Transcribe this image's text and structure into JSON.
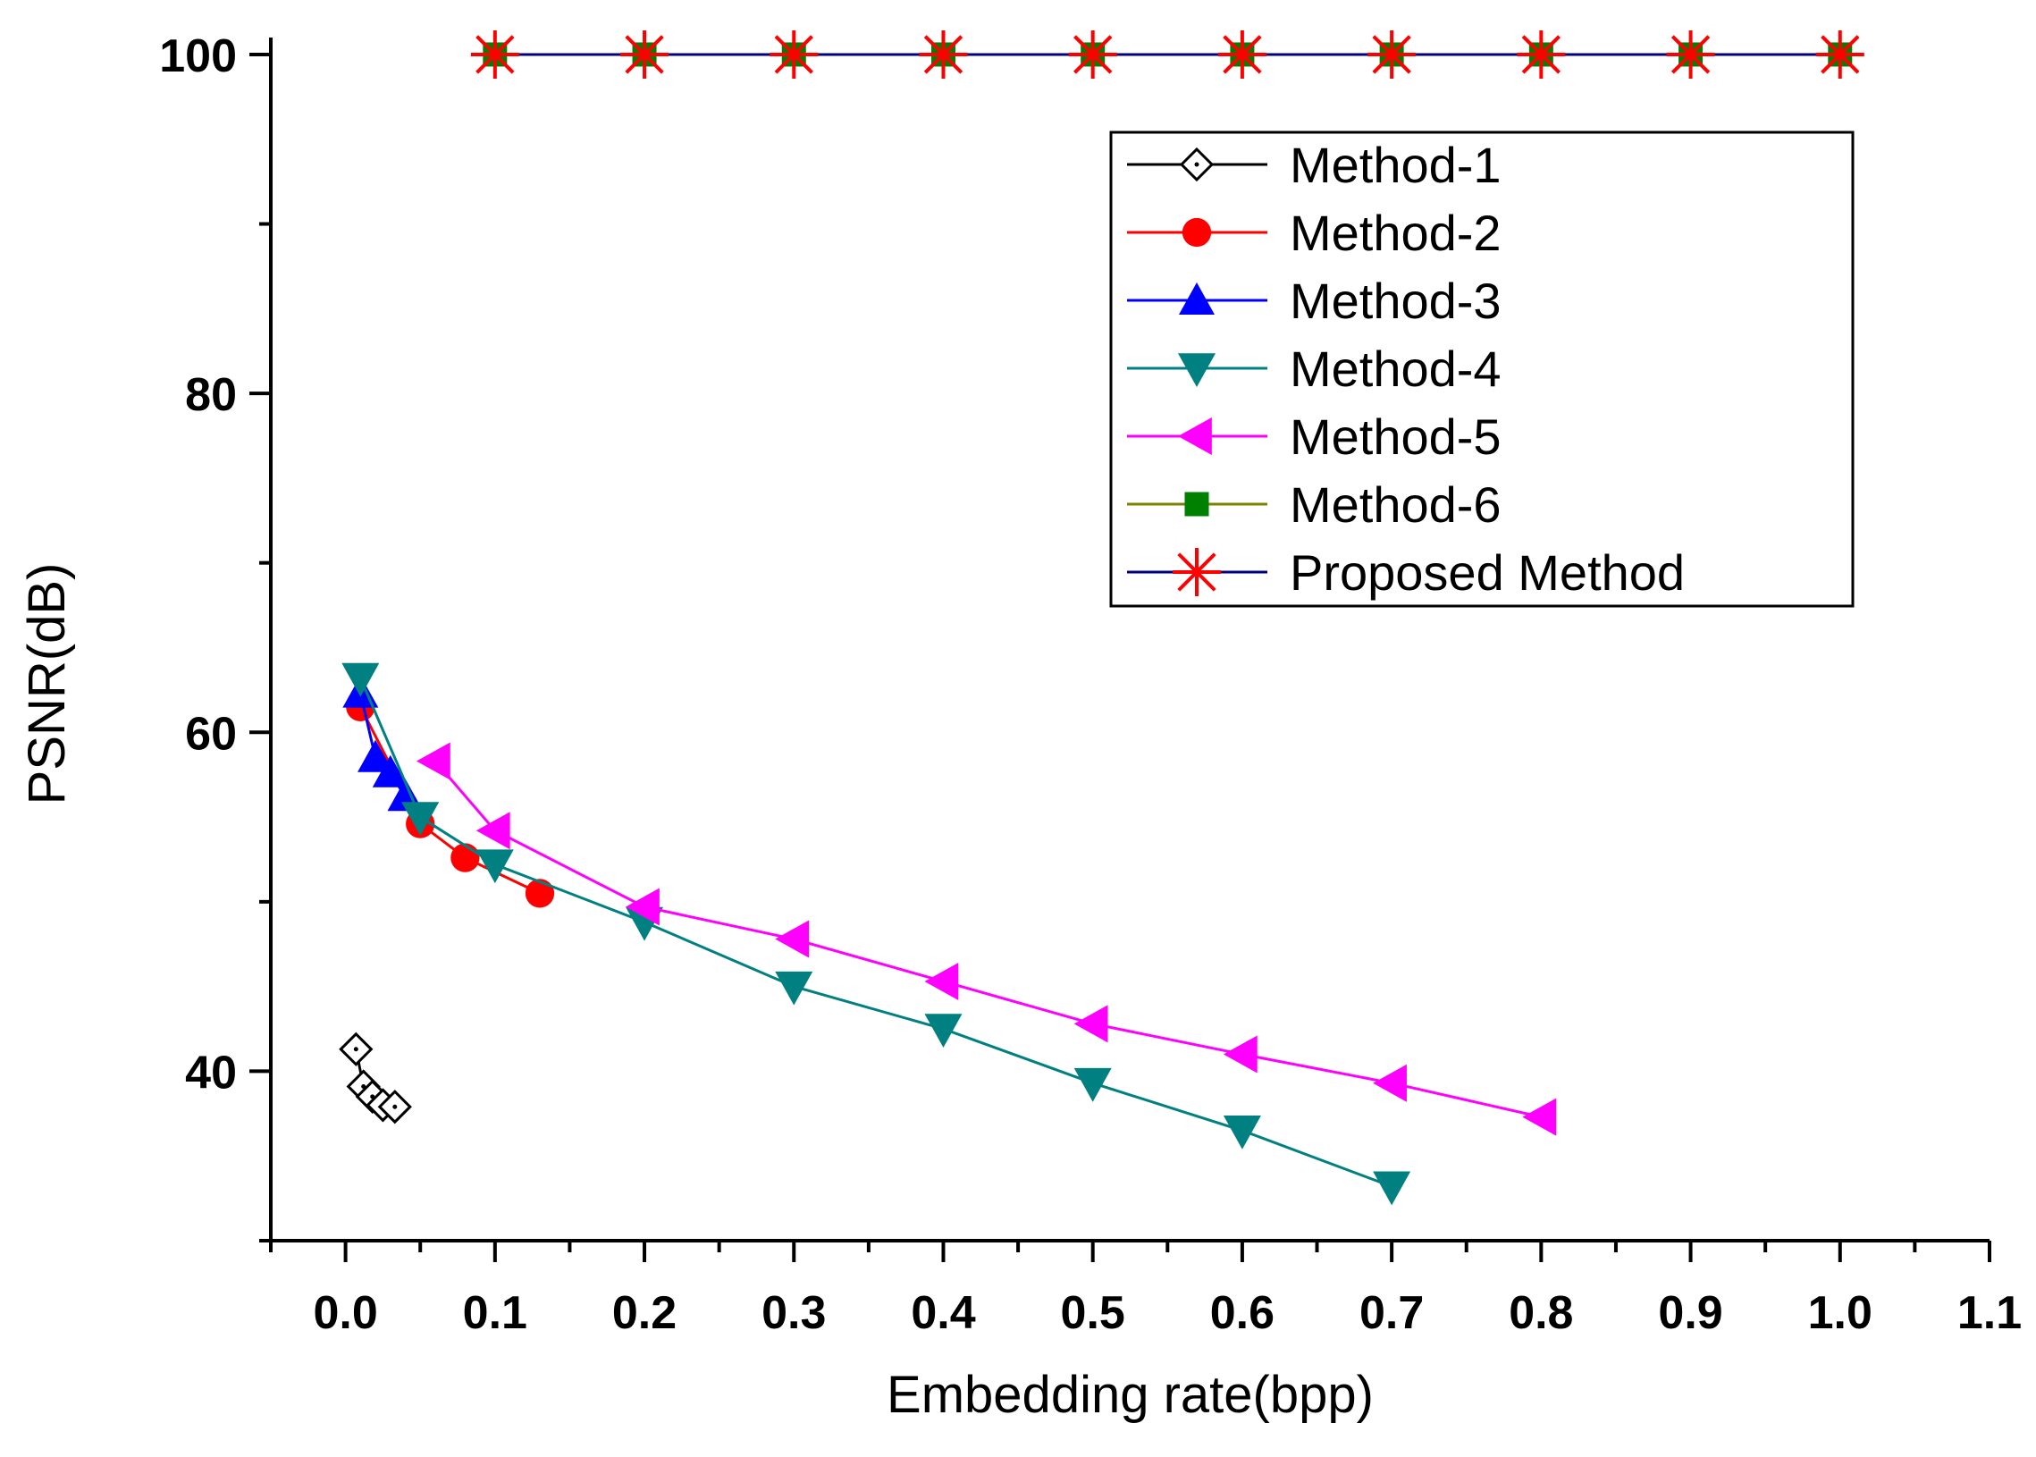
{
  "chart_data": {
    "type": "line",
    "title": "",
    "xlabel": "Embedding rate(bpp)",
    "ylabel": "PSNR(dB)",
    "xlim": [
      -0.05,
      1.1
    ],
    "ylim": [
      30,
      101
    ],
    "x_ticks": [
      0.0,
      0.1,
      0.2,
      0.3,
      0.4,
      0.5,
      0.6,
      0.7,
      0.8,
      0.9,
      1.0,
      1.1
    ],
    "x_tick_labels": [
      "0.0",
      "0.1",
      "0.2",
      "0.3",
      "0.4",
      "0.5",
      "0.6",
      "0.7",
      "0.8",
      "0.9",
      "1.0",
      "1.1"
    ],
    "y_ticks": [
      40,
      60,
      80,
      100
    ],
    "y_tick_labels": [
      "40",
      "60",
      "80",
      "100"
    ],
    "legend_position": "top-right",
    "series": [
      {
        "name": "Method-1",
        "marker": "diamond-open",
        "color": "#000000",
        "marker_color": "#000000",
        "x": [
          0.007,
          0.012,
          0.018,
          0.025,
          0.033
        ],
        "y": [
          41.3,
          39.1,
          38.5,
          38.0,
          37.9
        ]
      },
      {
        "name": "Method-2",
        "marker": "circle",
        "color": "#ff0000",
        "marker_color": "#ff0000",
        "x": [
          0.01,
          0.05,
          0.08,
          0.13
        ],
        "y": [
          61.5,
          54.6,
          52.6,
          50.5
        ]
      },
      {
        "name": "Method-3",
        "marker": "triangle-up",
        "color": "#0000ff",
        "marker_color": "#0000ff",
        "x": [
          0.01,
          0.02,
          0.03,
          0.04
        ],
        "y": [
          62.3,
          58.5,
          57.6,
          56.2
        ]
      },
      {
        "name": "Method-4",
        "marker": "triangle-down",
        "color": "#008080",
        "marker_color": "#008080",
        "x": [
          0.01,
          0.05,
          0.1,
          0.2,
          0.3,
          0.4,
          0.5,
          0.6,
          0.7
        ],
        "y": [
          63.2,
          55.0,
          52.2,
          48.8,
          45.0,
          42.5,
          39.3,
          36.5,
          33.2
        ]
      },
      {
        "name": "Method-5",
        "marker": "triangle-left",
        "color": "#ff00ff",
        "marker_color": "#ff00ff",
        "x": [
          0.06,
          0.1,
          0.2,
          0.3,
          0.4,
          0.5,
          0.6,
          0.7,
          0.8
        ],
        "y": [
          58.3,
          54.2,
          49.7,
          47.8,
          45.3,
          42.8,
          41.0,
          39.3,
          37.3
        ]
      },
      {
        "name": "Method-6",
        "marker": "square",
        "color": "#808000",
        "marker_color": "#008000",
        "x": [
          0.1,
          0.2,
          0.3,
          0.4,
          0.5,
          0.6,
          0.7,
          0.8,
          0.9,
          1.0
        ],
        "y": [
          100,
          100,
          100,
          100,
          100,
          100,
          100,
          100,
          100,
          100
        ]
      },
      {
        "name": "Proposed Method",
        "marker": "asterisk",
        "color": "#000080",
        "marker_color": "#ff0000",
        "x": [
          0.1,
          0.2,
          0.3,
          0.4,
          0.5,
          0.6,
          0.7,
          0.8,
          0.9,
          1.0
        ],
        "y": [
          100,
          100,
          100,
          100,
          100,
          100,
          100,
          100,
          100,
          100
        ]
      }
    ]
  }
}
